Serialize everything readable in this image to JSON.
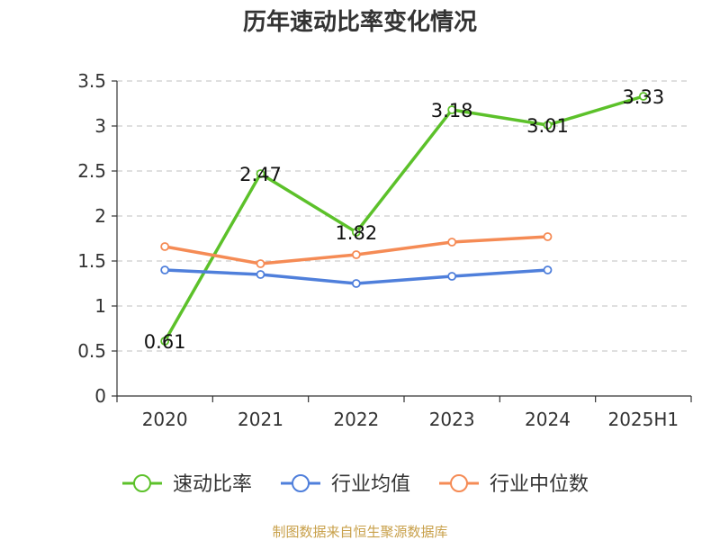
{
  "chart_data": {
    "type": "line",
    "title": "历年速动比率变化情况",
    "categories": [
      "2020",
      "2021",
      "2022",
      "2023",
      "2024",
      "2025H1"
    ],
    "ylim": [
      0,
      3.5
    ],
    "yticks": [
      "0",
      "0.5",
      "1",
      "1.5",
      "2",
      "2.5",
      "3",
      "3.5"
    ],
    "grid": true,
    "legend_position": "bottom",
    "series": [
      {
        "name": "速动比率",
        "color": "#5cc12a",
        "values": [
          0.61,
          2.47,
          1.82,
          3.18,
          3.01,
          3.33
        ],
        "labels": [
          "0.61",
          "2.47",
          "1.82",
          "3.18",
          "3.01",
          "3.33"
        ]
      },
      {
        "name": "行业均值",
        "color": "#4f7fdb",
        "values": [
          1.4,
          1.35,
          1.25,
          1.33,
          1.4,
          null
        ]
      },
      {
        "name": "行业中位数",
        "color": "#f58b55",
        "values": [
          1.66,
          1.47,
          1.57,
          1.71,
          1.77,
          null
        ]
      }
    ]
  },
  "source_text": "制图数据来自恒生聚源数据库"
}
